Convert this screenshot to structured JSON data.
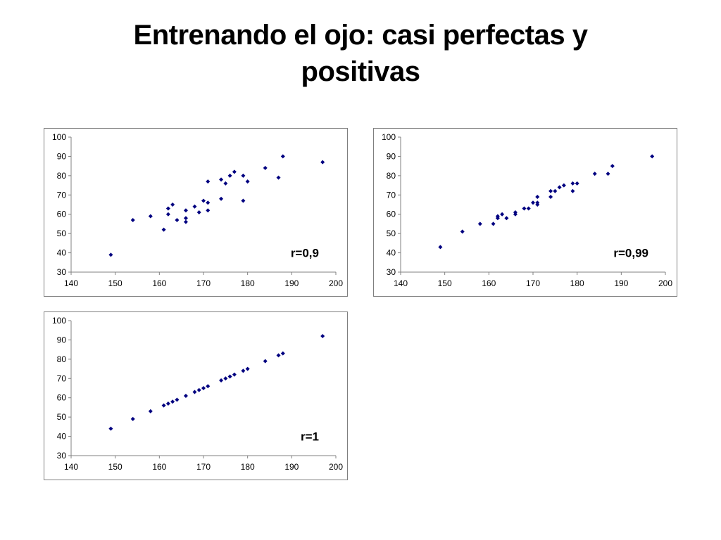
{
  "slide": {
    "title": "Entrenando el ojo: casi perfectas y positivas"
  },
  "colors": {
    "point": "#000080",
    "axis": "#808080",
    "frame": "#7f7f7f"
  },
  "chart_data": [
    {
      "type": "scatter",
      "title": "",
      "xlabel": "",
      "ylabel": "",
      "annotation": "r=0,9",
      "xlim": [
        140,
        200
      ],
      "ylim": [
        30,
        100
      ],
      "xticks": [
        140,
        150,
        160,
        170,
        180,
        190,
        200
      ],
      "yticks": [
        30,
        40,
        50,
        60,
        70,
        80,
        90,
        100
      ],
      "grid": false,
      "points": [
        [
          149,
          39
        ],
        [
          154,
          57
        ],
        [
          158,
          59
        ],
        [
          161,
          52
        ],
        [
          162,
          60
        ],
        [
          162,
          63
        ],
        [
          163,
          65
        ],
        [
          164,
          57
        ],
        [
          166,
          62
        ],
        [
          166,
          58
        ],
        [
          166,
          56
        ],
        [
          168,
          64
        ],
        [
          169,
          61
        ],
        [
          170,
          67
        ],
        [
          171,
          62
        ],
        [
          171,
          66
        ],
        [
          171,
          77
        ],
        [
          174,
          78
        ],
        [
          174,
          68
        ],
        [
          175,
          76
        ],
        [
          176,
          80
        ],
        [
          177,
          82
        ],
        [
          179,
          80
        ],
        [
          179,
          67
        ],
        [
          180,
          77
        ],
        [
          184,
          84
        ],
        [
          187,
          79
        ],
        [
          188,
          90
        ],
        [
          197,
          87
        ]
      ]
    },
    {
      "type": "scatter",
      "title": "",
      "xlabel": "",
      "ylabel": "",
      "annotation": "r=0,99",
      "xlim": [
        140,
        200
      ],
      "ylim": [
        30,
        100
      ],
      "xticks": [
        140,
        150,
        160,
        170,
        180,
        190,
        200
      ],
      "yticks": [
        30,
        40,
        50,
        60,
        70,
        80,
        90,
        100
      ],
      "grid": false,
      "points": [
        [
          149,
          43
        ],
        [
          154,
          51
        ],
        [
          158,
          55
        ],
        [
          161,
          55
        ],
        [
          162,
          58
        ],
        [
          162,
          59
        ],
        [
          163,
          60
        ],
        [
          164,
          58
        ],
        [
          166,
          60
        ],
        [
          166,
          61
        ],
        [
          168,
          63
        ],
        [
          169,
          63
        ],
        [
          170,
          66
        ],
        [
          171,
          65
        ],
        [
          171,
          66
        ],
        [
          171,
          69
        ],
        [
          174,
          69
        ],
        [
          174,
          72
        ],
        [
          175,
          72
        ],
        [
          176,
          74
        ],
        [
          177,
          75
        ],
        [
          179,
          72
        ],
        [
          179,
          76
        ],
        [
          180,
          76
        ],
        [
          184,
          81
        ],
        [
          187,
          81
        ],
        [
          188,
          85
        ],
        [
          197,
          90
        ]
      ]
    },
    {
      "type": "scatter",
      "title": "",
      "xlabel": "",
      "ylabel": "",
      "annotation": "r=1",
      "xlim": [
        140,
        200
      ],
      "ylim": [
        30,
        100
      ],
      "xticks": [
        140,
        150,
        160,
        170,
        180,
        190,
        200
      ],
      "yticks": [
        30,
        40,
        50,
        60,
        70,
        80,
        90,
        100
      ],
      "grid": false,
      "points": [
        [
          149,
          44
        ],
        [
          154,
          49
        ],
        [
          158,
          53
        ],
        [
          161,
          56
        ],
        [
          162,
          57
        ],
        [
          163,
          58
        ],
        [
          164,
          59
        ],
        [
          166,
          61
        ],
        [
          168,
          63
        ],
        [
          169,
          64
        ],
        [
          170,
          65
        ],
        [
          171,
          66
        ],
        [
          174,
          69
        ],
        [
          175,
          70
        ],
        [
          176,
          71
        ],
        [
          177,
          72
        ],
        [
          179,
          74
        ],
        [
          180,
          75
        ],
        [
          184,
          79
        ],
        [
          187,
          82
        ],
        [
          188,
          83
        ],
        [
          197,
          92
        ]
      ]
    }
  ]
}
